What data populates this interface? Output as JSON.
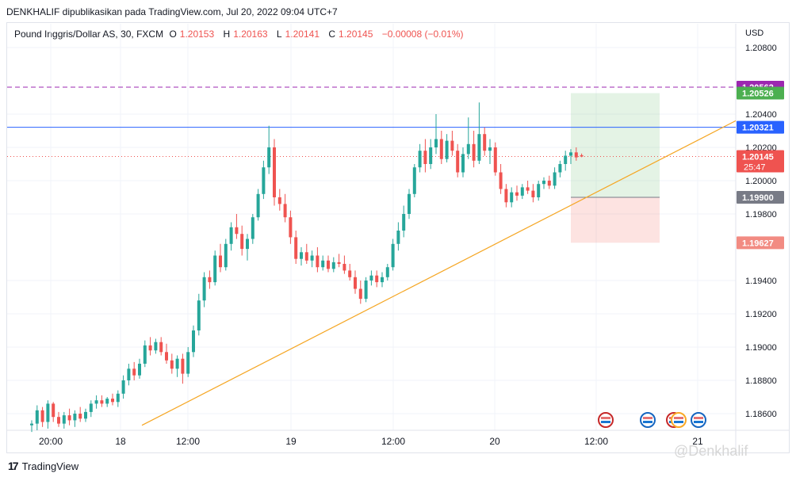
{
  "header": {
    "publisher_line": "DENKHALIF dipublikasikan pada TradingView.com, Jul 20, 2022 09:04 UTC+7"
  },
  "legend": {
    "symbol": "Pound Inggris/Dollar AS, 30, FXCM",
    "open_label": "O",
    "open": "1.20153",
    "high_label": "H",
    "high": "1.20163",
    "low_label": "L",
    "low": "1.20141",
    "close_label": "C",
    "close": "1.20145",
    "change": "−0.00008 (−0.01%)"
  },
  "currency": "USD",
  "footer": {
    "brand": "TradingView",
    "watermark": "@Denkhalif"
  },
  "colors": {
    "up": "#26a69a",
    "down": "#ef5350",
    "trendline": "#f5a623",
    "hline": "#2962ff",
    "purple": "#9c27b0",
    "target": "#26a69a",
    "stop": "#ef9a9a"
  },
  "chart_data": {
    "type": "candlestick",
    "y_ticks": [
      "1.20800",
      "1.20400",
      "1.20200",
      "1.20000",
      "1.19800",
      "1.19400",
      "1.19200",
      "1.19000",
      "1.18800",
      "1.18600"
    ],
    "x_ticks": [
      "20:00",
      "18",
      "12:00",
      "19",
      "12:00",
      "20",
      "12:00",
      "21"
    ],
    "price_labels": [
      {
        "value": "1.20562",
        "color": "#9c27b0",
        "text_color": "#ffffff"
      },
      {
        "value": "1.20526",
        "color": "#4caf50",
        "text_color": "#ffffff"
      },
      {
        "value": "1.20321",
        "color": "#2962ff",
        "text_color": "#ffffff"
      },
      {
        "value": "1.20145",
        "color": "#ef5350",
        "text_color": "#ffffff",
        "sub": "25:47"
      },
      {
        "value": "1.19900",
        "color": "#787b86",
        "text_color": "#ffffff"
      },
      {
        "value": "1.19627",
        "color": "#f28b82",
        "text_color": "#ffffff"
      }
    ],
    "horizontal_lines": [
      {
        "price": 1.20562,
        "style": "dashed",
        "color": "#9c27b0"
      },
      {
        "price": 1.20321,
        "style": "solid",
        "color": "#2962ff"
      },
      {
        "price": 1.20145,
        "style": "dotted",
        "color": "#ef5350"
      }
    ],
    "trendline": {
      "from": {
        "x": "Jul 18 03:30",
        "price": 1.1853
      },
      "to": {
        "x": "Jul 21 01:30",
        "price": 1.2036
      }
    },
    "position": {
      "entry": 1.199,
      "target": 1.20526,
      "stop": 1.19627
    },
    "candles": [
      {
        "o": 1.1853,
        "h": 1.1856,
        "l": 1.1849,
        "c": 1.1854
      },
      {
        "o": 1.1854,
        "h": 1.1865,
        "l": 1.185,
        "c": 1.1862
      },
      {
        "o": 1.1862,
        "h": 1.1864,
        "l": 1.1852,
        "c": 1.1855
      },
      {
        "o": 1.1855,
        "h": 1.1868,
        "l": 1.1851,
        "c": 1.1866
      },
      {
        "o": 1.1866,
        "h": 1.1867,
        "l": 1.1855,
        "c": 1.1858
      },
      {
        "o": 1.1858,
        "h": 1.1861,
        "l": 1.1852,
        "c": 1.1854
      },
      {
        "o": 1.1854,
        "h": 1.1861,
        "l": 1.1851,
        "c": 1.1859
      },
      {
        "o": 1.1859,
        "h": 1.1863,
        "l": 1.1853,
        "c": 1.1856
      },
      {
        "o": 1.1856,
        "h": 1.1862,
        "l": 1.1852,
        "c": 1.186
      },
      {
        "o": 1.186,
        "h": 1.1864,
        "l": 1.1855,
        "c": 1.1857
      },
      {
        "o": 1.1857,
        "h": 1.1863,
        "l": 1.1855,
        "c": 1.1861
      },
      {
        "o": 1.1861,
        "h": 1.1868,
        "l": 1.1858,
        "c": 1.1866
      },
      {
        "o": 1.1866,
        "h": 1.1871,
        "l": 1.1863,
        "c": 1.1868
      },
      {
        "o": 1.1868,
        "h": 1.1871,
        "l": 1.1864,
        "c": 1.1866
      },
      {
        "o": 1.1866,
        "h": 1.187,
        "l": 1.1864,
        "c": 1.1869
      },
      {
        "o": 1.1869,
        "h": 1.1872,
        "l": 1.1865,
        "c": 1.1867
      },
      {
        "o": 1.1867,
        "h": 1.1874,
        "l": 1.1864,
        "c": 1.1872
      },
      {
        "o": 1.1872,
        "h": 1.1883,
        "l": 1.1869,
        "c": 1.188
      },
      {
        "o": 1.188,
        "h": 1.189,
        "l": 1.1877,
        "c": 1.1887
      },
      {
        "o": 1.1887,
        "h": 1.1891,
        "l": 1.188,
        "c": 1.1883
      },
      {
        "o": 1.1883,
        "h": 1.1893,
        "l": 1.1881,
        "c": 1.189
      },
      {
        "o": 1.189,
        "h": 1.1904,
        "l": 1.1888,
        "c": 1.1901
      },
      {
        "o": 1.1901,
        "h": 1.1906,
        "l": 1.1895,
        "c": 1.1898
      },
      {
        "o": 1.1898,
        "h": 1.1905,
        "l": 1.1896,
        "c": 1.1903
      },
      {
        "o": 1.1903,
        "h": 1.1906,
        "l": 1.1895,
        "c": 1.1897
      },
      {
        "o": 1.1897,
        "h": 1.1902,
        "l": 1.189,
        "c": 1.1892
      },
      {
        "o": 1.1892,
        "h": 1.1896,
        "l": 1.1884,
        "c": 1.1887
      },
      {
        "o": 1.1887,
        "h": 1.1895,
        "l": 1.1882,
        "c": 1.1893
      },
      {
        "o": 1.1893,
        "h": 1.1896,
        "l": 1.1878,
        "c": 1.1884
      },
      {
        "o": 1.1884,
        "h": 1.19,
        "l": 1.1882,
        "c": 1.1897
      },
      {
        "o": 1.1897,
        "h": 1.1913,
        "l": 1.1894,
        "c": 1.191
      },
      {
        "o": 1.191,
        "h": 1.1932,
        "l": 1.1907,
        "c": 1.1928
      },
      {
        "o": 1.1928,
        "h": 1.1945,
        "l": 1.1924,
        "c": 1.1942
      },
      {
        "o": 1.1942,
        "h": 1.1946,
        "l": 1.1935,
        "c": 1.1939
      },
      {
        "o": 1.1939,
        "h": 1.1958,
        "l": 1.1937,
        "c": 1.1955
      },
      {
        "o": 1.1955,
        "h": 1.1962,
        "l": 1.1945,
        "c": 1.1948
      },
      {
        "o": 1.1948,
        "h": 1.1965,
        "l": 1.1946,
        "c": 1.1962
      },
      {
        "o": 1.1962,
        "h": 1.1975,
        "l": 1.1958,
        "c": 1.1972
      },
      {
        "o": 1.1972,
        "h": 1.198,
        "l": 1.1965,
        "c": 1.1968
      },
      {
        "o": 1.1968,
        "h": 1.1973,
        "l": 1.1955,
        "c": 1.1959
      },
      {
        "o": 1.1959,
        "h": 1.1968,
        "l": 1.1952,
        "c": 1.1965
      },
      {
        "o": 1.1965,
        "h": 1.198,
        "l": 1.1962,
        "c": 1.1978
      },
      {
        "o": 1.1978,
        "h": 1.1995,
        "l": 1.1976,
        "c": 1.1992
      },
      {
        "o": 1.1992,
        "h": 1.2012,
        "l": 1.1989,
        "c": 1.2008
      },
      {
        "o": 1.2008,
        "h": 1.2033,
        "l": 1.2004,
        "c": 1.202
      },
      {
        "o": 1.202,
        "h": 1.2025,
        "l": 1.1985,
        "c": 1.199
      },
      {
        "o": 1.199,
        "h": 1.1995,
        "l": 1.1982,
        "c": 1.1986
      },
      {
        "o": 1.1986,
        "h": 1.1992,
        "l": 1.1975,
        "c": 1.1978
      },
      {
        "o": 1.1978,
        "h": 1.1982,
        "l": 1.1962,
        "c": 1.1966
      },
      {
        "o": 1.1966,
        "h": 1.197,
        "l": 1.195,
        "c": 1.1953
      },
      {
        "o": 1.1953,
        "h": 1.196,
        "l": 1.1949,
        "c": 1.1957
      },
      {
        "o": 1.1957,
        "h": 1.1962,
        "l": 1.195,
        "c": 1.1952
      },
      {
        "o": 1.1952,
        "h": 1.1958,
        "l": 1.1948,
        "c": 1.1955
      },
      {
        "o": 1.1955,
        "h": 1.196,
        "l": 1.1945,
        "c": 1.1948
      },
      {
        "o": 1.1948,
        "h": 1.1955,
        "l": 1.1946,
        "c": 1.1952
      },
      {
        "o": 1.1952,
        "h": 1.1955,
        "l": 1.1945,
        "c": 1.1947
      },
      {
        "o": 1.1947,
        "h": 1.1954,
        "l": 1.1945,
        "c": 1.1951
      },
      {
        "o": 1.1951,
        "h": 1.1956,
        "l": 1.1948,
        "c": 1.195
      },
      {
        "o": 1.195,
        "h": 1.1955,
        "l": 1.1944,
        "c": 1.1946
      },
      {
        "o": 1.1946,
        "h": 1.195,
        "l": 1.194,
        "c": 1.1942
      },
      {
        "o": 1.1942,
        "h": 1.1946,
        "l": 1.1932,
        "c": 1.1935
      },
      {
        "o": 1.1935,
        "h": 1.194,
        "l": 1.1926,
        "c": 1.1929
      },
      {
        "o": 1.1929,
        "h": 1.1942,
        "l": 1.1927,
        "c": 1.194
      },
      {
        "o": 1.194,
        "h": 1.1946,
        "l": 1.1937,
        "c": 1.1943
      },
      {
        "o": 1.1943,
        "h": 1.1946,
        "l": 1.1936,
        "c": 1.1939
      },
      {
        "o": 1.1939,
        "h": 1.1945,
        "l": 1.1936,
        "c": 1.1942
      },
      {
        "o": 1.1942,
        "h": 1.195,
        "l": 1.194,
        "c": 1.1948
      },
      {
        "o": 1.1948,
        "h": 1.1965,
        "l": 1.1946,
        "c": 1.1962
      },
      {
        "o": 1.1962,
        "h": 1.1975,
        "l": 1.1958,
        "c": 1.197
      },
      {
        "o": 1.197,
        "h": 1.1985,
        "l": 1.1966,
        "c": 1.198
      },
      {
        "o": 1.198,
        "h": 1.1995,
        "l": 1.1977,
        "c": 1.1992
      },
      {
        "o": 1.1992,
        "h": 1.201,
        "l": 1.199,
        "c": 1.2008
      },
      {
        "o": 1.2008,
        "h": 1.2022,
        "l": 1.2005,
        "c": 1.2018
      },
      {
        "o": 1.2018,
        "h": 1.2025,
        "l": 1.2005,
        "c": 1.201
      },
      {
        "o": 1.201,
        "h": 1.2025,
        "l": 1.2007,
        "c": 1.202
      },
      {
        "o": 1.202,
        "h": 1.204,
        "l": 1.2016,
        "c": 1.2025
      },
      {
        "o": 1.2025,
        "h": 1.203,
        "l": 1.201,
        "c": 1.2013
      },
      {
        "o": 1.2013,
        "h": 1.2028,
        "l": 1.2011,
        "c": 1.2024
      },
      {
        "o": 1.2024,
        "h": 1.203,
        "l": 1.2015,
        "c": 1.2018
      },
      {
        "o": 1.2018,
        "h": 1.2022,
        "l": 1.2002,
        "c": 1.2005
      },
      {
        "o": 1.2005,
        "h": 1.202,
        "l": 1.2002,
        "c": 1.2016
      },
      {
        "o": 1.2016,
        "h": 1.2038,
        "l": 1.2013,
        "c": 1.2022
      },
      {
        "o": 1.2022,
        "h": 1.203,
        "l": 1.2008,
        "c": 1.2012
      },
      {
        "o": 1.2012,
        "h": 1.2047,
        "l": 1.201,
        "c": 1.2028
      },
      {
        "o": 1.2028,
        "h": 1.2032,
        "l": 1.2015,
        "c": 1.2018
      },
      {
        "o": 1.2018,
        "h": 1.2025,
        "l": 1.201,
        "c": 1.202
      },
      {
        "o": 1.202,
        "h": 1.2023,
        "l": 1.2003,
        "c": 1.2005
      },
      {
        "o": 1.2005,
        "h": 1.201,
        "l": 1.1992,
        "c": 1.1995
      },
      {
        "o": 1.1995,
        "h": 1.1998,
        "l": 1.1984,
        "c": 1.1987
      },
      {
        "o": 1.1987,
        "h": 1.1996,
        "l": 1.1984,
        "c": 1.1993
      },
      {
        "o": 1.1993,
        "h": 1.1997,
        "l": 1.1988,
        "c": 1.1991
      },
      {
        "o": 1.1991,
        "h": 1.1998,
        "l": 1.1989,
        "c": 1.1996
      },
      {
        "o": 1.1996,
        "h": 1.2,
        "l": 1.1992,
        "c": 1.1994
      },
      {
        "o": 1.1994,
        "h": 1.1998,
        "l": 1.1987,
        "c": 1.199
      },
      {
        "o": 1.199,
        "h": 1.2,
        "l": 1.1988,
        "c": 1.1998
      },
      {
        "o": 1.1998,
        "h": 1.2002,
        "l": 1.1995,
        "c": 1.2
      },
      {
        "o": 1.2,
        "h": 1.2003,
        "l": 1.1995,
        "c": 1.1997
      },
      {
        "o": 1.1997,
        "h": 1.2008,
        "l": 1.1995,
        "c": 1.2005
      },
      {
        "o": 1.2005,
        "h": 1.2012,
        "l": 1.2002,
        "c": 1.201
      },
      {
        "o": 1.201,
        "h": 1.2018,
        "l": 1.2006,
        "c": 1.2015
      },
      {
        "o": 1.2015,
        "h": 1.2019,
        "l": 1.201,
        "c": 1.2017
      },
      {
        "o": 1.2017,
        "h": 1.202,
        "l": 1.2012,
        "c": 1.2014
      },
      {
        "o": 1.20153,
        "h": 1.20163,
        "l": 1.20141,
        "c": 1.20145
      }
    ]
  }
}
